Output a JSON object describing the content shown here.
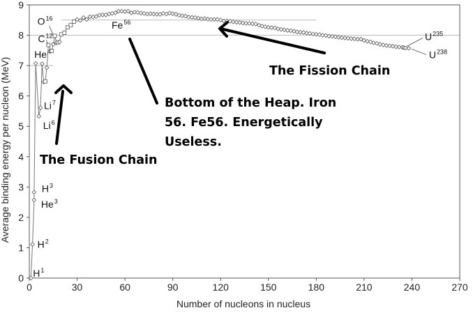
{
  "chart_data": {
    "type": "scatter",
    "title": "",
    "xlabel": "Number of nucleons in nucleus",
    "ylabel": "Average binding energy per nucleon (MeV)",
    "xlim": [
      0,
      270
    ],
    "ylim": [
      0,
      9
    ],
    "xticks": [
      0,
      30,
      60,
      90,
      120,
      150,
      180,
      210,
      240,
      270
    ],
    "yticks": [
      0,
      1,
      2,
      3,
      4,
      5,
      6,
      7,
      8,
      9
    ],
    "grid": false,
    "reference_lines": [
      {
        "y": 8.5,
        "x_from": 20,
        "x_to": 180
      },
      {
        "y": 8.0,
        "x_from": 0,
        "x_to": 270
      },
      {
        "y": 7.0,
        "x_from": 0,
        "x_to": 15
      }
    ],
    "series": [
      {
        "curve": [
          [
            1,
            0
          ],
          [
            2,
            1.11
          ],
          [
            3,
            2.57
          ],
          [
            3,
            2.83
          ],
          [
            4,
            7.07
          ],
          [
            6,
            5.33
          ],
          [
            7,
            5.61
          ],
          [
            8,
            7.06
          ],
          [
            9,
            6.46
          ],
          [
            10,
            6.48
          ],
          [
            11,
            6.93
          ],
          [
            12,
            7.68
          ],
          [
            14,
            7.48
          ],
          [
            15,
            7.7
          ],
          [
            16,
            7.98
          ],
          [
            17,
            7.75
          ],
          [
            18,
            7.77
          ],
          [
            19,
            7.78
          ],
          [
            20,
            8.03
          ],
          [
            22,
            8.08
          ],
          [
            24,
            8.26
          ],
          [
            26,
            8.33
          ],
          [
            28,
            8.45
          ],
          [
            30,
            8.52
          ],
          [
            32,
            8.49
          ],
          [
            34,
            8.58
          ],
          [
            36,
            8.52
          ],
          [
            38,
            8.61
          ],
          [
            40,
            8.6
          ],
          [
            42,
            8.62
          ],
          [
            44,
            8.66
          ],
          [
            46,
            8.67
          ],
          [
            48,
            8.67
          ],
          [
            50,
            8.7
          ],
          [
            52,
            8.72
          ],
          [
            54,
            8.74
          ],
          [
            56,
            8.79
          ],
          [
            58,
            8.79
          ],
          [
            60,
            8.78
          ],
          [
            62,
            8.79
          ],
          [
            64,
            8.74
          ],
          [
            66,
            8.76
          ],
          [
            68,
            8.75
          ],
          [
            70,
            8.73
          ],
          [
            72,
            8.72
          ],
          [
            74,
            8.7
          ],
          [
            76,
            8.71
          ],
          [
            78,
            8.7
          ],
          [
            80,
            8.69
          ],
          [
            82,
            8.69
          ],
          [
            84,
            8.72
          ],
          [
            86,
            8.7
          ],
          [
            88,
            8.73
          ],
          [
            90,
            8.71
          ],
          [
            92,
            8.69
          ],
          [
            94,
            8.66
          ],
          [
            96,
            8.64
          ],
          [
            98,
            8.63
          ],
          [
            100,
            8.6
          ],
          [
            102,
            8.59
          ],
          [
            104,
            8.58
          ],
          [
            106,
            8.56
          ],
          [
            108,
            8.54
          ],
          [
            110,
            8.55
          ],
          [
            112,
            8.53
          ],
          [
            114,
            8.52
          ],
          [
            116,
            8.52
          ],
          [
            118,
            8.52
          ],
          [
            120,
            8.5
          ],
          [
            122,
            8.47
          ],
          [
            124,
            8.47
          ],
          [
            126,
            8.46
          ],
          [
            128,
            8.44
          ],
          [
            130,
            8.43
          ],
          [
            132,
            8.42
          ],
          [
            134,
            8.4
          ],
          [
            136,
            8.39
          ],
          [
            138,
            8.39
          ],
          [
            140,
            8.38
          ],
          [
            142,
            8.37
          ],
          [
            144,
            8.33
          ],
          [
            146,
            8.3
          ],
          [
            148,
            8.28
          ],
          [
            150,
            8.26
          ],
          [
            152,
            8.25
          ],
          [
            154,
            8.24
          ],
          [
            156,
            8.21
          ],
          [
            158,
            8.19
          ],
          [
            160,
            8.18
          ],
          [
            162,
            8.16
          ],
          [
            164,
            8.15
          ],
          [
            166,
            8.13
          ],
          [
            168,
            8.11
          ],
          [
            170,
            8.1
          ],
          [
            172,
            8.09
          ],
          [
            174,
            8.07
          ],
          [
            176,
            8.06
          ],
          [
            178,
            8.04
          ],
          [
            180,
            8.03
          ],
          [
            182,
            8.02
          ],
          [
            184,
            8.0
          ],
          [
            186,
            7.99
          ],
          [
            188,
            7.97
          ],
          [
            190,
            7.96
          ],
          [
            192,
            7.95
          ],
          [
            194,
            7.93
          ],
          [
            196,
            7.92
          ],
          [
            198,
            7.91
          ],
          [
            200,
            7.9
          ],
          [
            202,
            7.89
          ],
          [
            204,
            7.88
          ],
          [
            206,
            7.87
          ],
          [
            208,
            7.87
          ],
          [
            210,
            7.83
          ],
          [
            212,
            7.8
          ],
          [
            214,
            7.78
          ],
          [
            216,
            7.75
          ],
          [
            218,
            7.73
          ],
          [
            220,
            7.7
          ],
          [
            222,
            7.68
          ],
          [
            224,
            7.66
          ],
          [
            226,
            7.65
          ],
          [
            228,
            7.64
          ],
          [
            230,
            7.62
          ],
          [
            232,
            7.61
          ],
          [
            234,
            7.6
          ],
          [
            235,
            7.59
          ],
          [
            236,
            7.58
          ],
          [
            238,
            7.57
          ]
        ],
        "squares": [
          [
            10,
            6.48
          ],
          [
            12,
            7.68
          ],
          [
            14,
            7.48
          ],
          [
            16,
            7.98
          ],
          [
            18,
            7.77
          ],
          [
            20,
            8.03
          ],
          [
            22,
            8.08
          ],
          [
            24,
            8.26
          ],
          [
            26,
            8.33
          ],
          [
            28,
            8.45
          ]
        ]
      }
    ],
    "isotope_labels": [
      {
        "text": "H",
        "sup": "1",
        "x": 1,
        "y": 0.0
      },
      {
        "text": "H",
        "sup": "2",
        "x": 2,
        "y": 1.11
      },
      {
        "text": "He",
        "sup": "3",
        "x": 3,
        "y": 2.57
      },
      {
        "text": "H",
        "sup": "3",
        "x": 3,
        "y": 2.83
      },
      {
        "text": "He",
        "sup": "4",
        "x": 4,
        "y": 7.07
      },
      {
        "text": "Li",
        "sup": "6",
        "x": 6,
        "y": 5.33
      },
      {
        "text": "Li",
        "sup": "7",
        "x": 7,
        "y": 5.61
      },
      {
        "text": "C",
        "sup": "12",
        "x": 12,
        "y": 7.68
      },
      {
        "text": "O",
        "sup": "16",
        "x": 16,
        "y": 7.98
      },
      {
        "text": "Fe",
        "sup": "56",
        "x": 56,
        "y": 8.79
      },
      {
        "text": "U",
        "sup": "235",
        "x": 235,
        "y": 7.59
      },
      {
        "text": "U",
        "sup": "238",
        "x": 238,
        "y": 7.57
      }
    ],
    "annotations": [
      {
        "lines": [
          "The Fusion Chain"
        ]
      },
      {
        "lines": [
          "Bottom of the Heap. Iron",
          "56. Fe56. Energetically",
          "Useless."
        ]
      },
      {
        "lines": [
          "The Fission Chain"
        ]
      }
    ],
    "colors": {
      "axis": "#555555",
      "curve": "#777777",
      "reference_line": "#bbbbbb",
      "annotation": "#000000",
      "arrow": "#000000"
    }
  }
}
